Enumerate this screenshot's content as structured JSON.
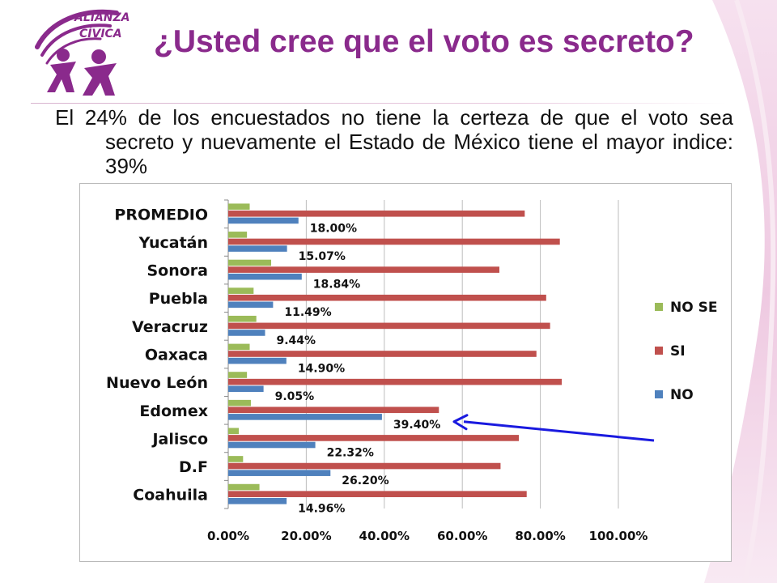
{
  "logo": {
    "text_top": "ALIANZA",
    "text_bottom": "CÍVICA",
    "color": "#8a2a8c"
  },
  "title": "¿Usted cree que el voto es secreto?",
  "body": "El 24% de los encuestados no tiene la certeza de que el voto sea secreto y nuevamente el Estado de México tiene el mayor indice: 39%",
  "colors": {
    "title": "#8a2a8c",
    "no": "#4f81bd",
    "si": "#c0504d",
    "nose": "#9bbb59",
    "arrow": "#1a1adf"
  },
  "chart_data": {
    "type": "bar",
    "orientation": "horizontal",
    "categories": [
      "PROMEDIO",
      "Yucatán",
      "Sonora",
      "Puebla",
      "Veracruz",
      "Oaxaca",
      "Nuevo León",
      "Edomex",
      "Jalisco",
      "D.F",
      "Coahuila"
    ],
    "series": [
      {
        "name": "NO SE",
        "color": "#9bbb59",
        "values": [
          5.5,
          4.8,
          11.0,
          6.5,
          7.2,
          5.5,
          4.8,
          5.8,
          2.7,
          3.8,
          8.0
        ]
      },
      {
        "name": "SI",
        "color": "#c0504d",
        "values": [
          76.0,
          85.0,
          69.5,
          81.5,
          82.5,
          79.0,
          85.5,
          54.0,
          74.5,
          69.8,
          76.5
        ]
      },
      {
        "name": "NO",
        "color": "#4f81bd",
        "values": [
          18.0,
          15.07,
          18.84,
          11.49,
          9.44,
          14.9,
          9.05,
          39.4,
          22.32,
          26.2,
          14.96
        ]
      }
    ],
    "data_labels": {
      "series": "NO",
      "values": [
        "18.00%",
        "15.07%",
        "18.84%",
        "11.49%",
        "9.44%",
        "14.90%",
        "9.05%",
        "39.40%",
        "22.32%",
        "26.20%",
        "14.96%"
      ]
    },
    "x_ticks": [
      "0.00%",
      "20.00%",
      "40.00%",
      "60.00%",
      "80.00%",
      "100.00%"
    ],
    "xlim": [
      0,
      100
    ],
    "grid": true,
    "legend": {
      "placement": "right",
      "entries": [
        "NO SE",
        "SI",
        "NO"
      ]
    },
    "annotation": {
      "type": "arrow",
      "target": "Edomex"
    }
  }
}
